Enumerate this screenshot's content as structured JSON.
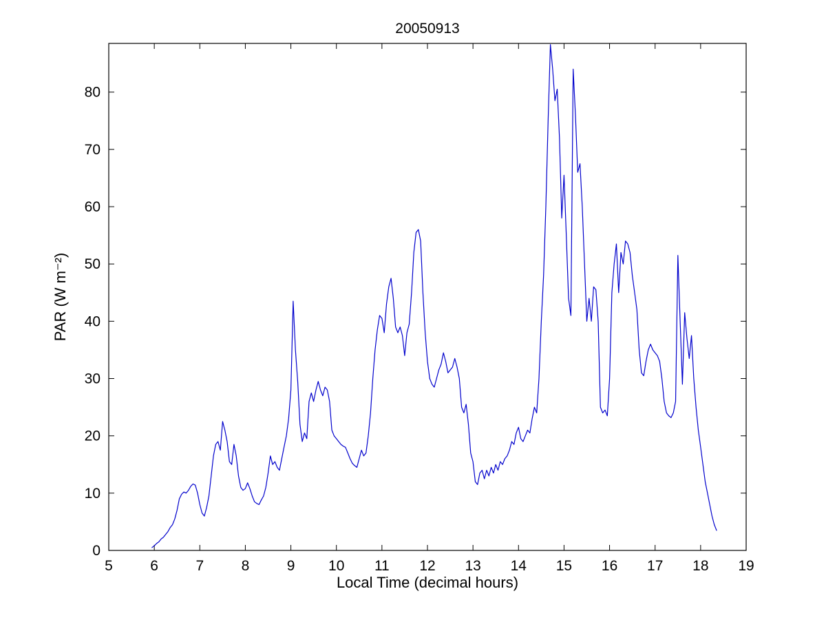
{
  "chart_data": {
    "type": "line",
    "title": "20050913",
    "xlabel": "Local Time (decimal hours)",
    "ylabel": "PAR (W m⁻²)",
    "xlim": [
      5,
      19
    ],
    "ylim": [
      0,
      88.5
    ],
    "xticks": [
      5,
      6,
      7,
      8,
      9,
      10,
      11,
      12,
      13,
      14,
      15,
      16,
      17,
      18,
      19
    ],
    "yticks": [
      0,
      10,
      20,
      30,
      40,
      50,
      60,
      70,
      80
    ],
    "grid": false,
    "legend": null,
    "line_color": "#0000cc",
    "axis_color": "#000000",
    "background": "#ffffff",
    "series_name": "PAR",
    "points": [
      [
        5.95,
        0.5
      ],
      [
        6.0,
        0.8
      ],
      [
        6.05,
        1.2
      ],
      [
        6.1,
        1.5
      ],
      [
        6.15,
        2.0
      ],
      [
        6.2,
        2.3
      ],
      [
        6.25,
        2.8
      ],
      [
        6.3,
        3.3
      ],
      [
        6.35,
        4.0
      ],
      [
        6.4,
        4.5
      ],
      [
        6.45,
        5.5
      ],
      [
        6.5,
        7.0
      ],
      [
        6.55,
        9.0
      ],
      [
        6.6,
        9.8
      ],
      [
        6.65,
        10.2
      ],
      [
        6.7,
        10.0
      ],
      [
        6.75,
        10.5
      ],
      [
        6.8,
        11.2
      ],
      [
        6.85,
        11.6
      ],
      [
        6.9,
        11.4
      ],
      [
        6.95,
        10.0
      ],
      [
        7.0,
        8.0
      ],
      [
        7.05,
        6.5
      ],
      [
        7.1,
        6.0
      ],
      [
        7.15,
        7.5
      ],
      [
        7.2,
        9.5
      ],
      [
        7.25,
        13.0
      ],
      [
        7.3,
        16.5
      ],
      [
        7.35,
        18.5
      ],
      [
        7.4,
        19.0
      ],
      [
        7.45,
        17.5
      ],
      [
        7.5,
        22.5
      ],
      [
        7.55,
        21.0
      ],
      [
        7.6,
        19.0
      ],
      [
        7.65,
        15.5
      ],
      [
        7.7,
        15.0
      ],
      [
        7.75,
        18.5
      ],
      [
        7.8,
        16.5
      ],
      [
        7.85,
        13.0
      ],
      [
        7.9,
        11.0
      ],
      [
        7.95,
        10.5
      ],
      [
        8.0,
        10.8
      ],
      [
        8.05,
        11.8
      ],
      [
        8.1,
        10.8
      ],
      [
        8.15,
        9.5
      ],
      [
        8.2,
        8.5
      ],
      [
        8.25,
        8.2
      ],
      [
        8.3,
        8.0
      ],
      [
        8.35,
        8.8
      ],
      [
        8.4,
        9.5
      ],
      [
        8.45,
        11.0
      ],
      [
        8.5,
        13.5
      ],
      [
        8.55,
        16.5
      ],
      [
        8.6,
        15.0
      ],
      [
        8.65,
        15.5
      ],
      [
        8.7,
        14.5
      ],
      [
        8.75,
        14.0
      ],
      [
        8.8,
        16.0
      ],
      [
        8.85,
        18.0
      ],
      [
        8.9,
        20.0
      ],
      [
        8.95,
        23.0
      ],
      [
        9.0,
        28.0
      ],
      [
        9.05,
        43.5
      ],
      [
        9.1,
        35.0
      ],
      [
        9.15,
        29.5
      ],
      [
        9.2,
        22.0
      ],
      [
        9.25,
        19.0
      ],
      [
        9.3,
        20.5
      ],
      [
        9.35,
        19.5
      ],
      [
        9.4,
        26.0
      ],
      [
        9.45,
        27.5
      ],
      [
        9.5,
        26.0
      ],
      [
        9.55,
        28.0
      ],
      [
        9.6,
        29.5
      ],
      [
        9.65,
        28.0
      ],
      [
        9.7,
        27.0
      ],
      [
        9.75,
        28.5
      ],
      [
        9.8,
        28.0
      ],
      [
        9.85,
        26.0
      ],
      [
        9.9,
        21.0
      ],
      [
        9.95,
        20.0
      ],
      [
        10.0,
        19.5
      ],
      [
        10.05,
        19.0
      ],
      [
        10.1,
        18.5
      ],
      [
        10.15,
        18.2
      ],
      [
        10.2,
        18.0
      ],
      [
        10.25,
        17.0
      ],
      [
        10.3,
        16.0
      ],
      [
        10.35,
        15.2
      ],
      [
        10.4,
        14.8
      ],
      [
        10.45,
        14.5
      ],
      [
        10.5,
        16.0
      ],
      [
        10.55,
        17.5
      ],
      [
        10.6,
        16.5
      ],
      [
        10.65,
        17.0
      ],
      [
        10.7,
        20.0
      ],
      [
        10.75,
        24.0
      ],
      [
        10.8,
        30.0
      ],
      [
        10.85,
        35.0
      ],
      [
        10.9,
        38.5
      ],
      [
        10.95,
        41.0
      ],
      [
        11.0,
        40.5
      ],
      [
        11.05,
        38.0
      ],
      [
        11.1,
        43.0
      ],
      [
        11.15,
        46.0
      ],
      [
        11.2,
        47.5
      ],
      [
        11.25,
        44.0
      ],
      [
        11.3,
        39.0
      ],
      [
        11.35,
        38.0
      ],
      [
        11.4,
        39.0
      ],
      [
        11.45,
        37.5
      ],
      [
        11.5,
        34.0
      ],
      [
        11.55,
        38.0
      ],
      [
        11.6,
        39.5
      ],
      [
        11.65,
        45.0
      ],
      [
        11.7,
        52.0
      ],
      [
        11.75,
        55.5
      ],
      [
        11.8,
        56.0
      ],
      [
        11.85,
        54.0
      ],
      [
        11.9,
        45.0
      ],
      [
        11.95,
        38.0
      ],
      [
        12.0,
        33.0
      ],
      [
        12.05,
        30.0
      ],
      [
        12.1,
        29.0
      ],
      [
        12.15,
        28.5
      ],
      [
        12.2,
        30.0
      ],
      [
        12.25,
        31.5
      ],
      [
        12.3,
        32.5
      ],
      [
        12.35,
        34.5
      ],
      [
        12.4,
        33.0
      ],
      [
        12.45,
        31.0
      ],
      [
        12.5,
        31.5
      ],
      [
        12.55,
        32.0
      ],
      [
        12.6,
        33.5
      ],
      [
        12.65,
        32.0
      ],
      [
        12.7,
        30.0
      ],
      [
        12.75,
        25.0
      ],
      [
        12.8,
        24.0
      ],
      [
        12.85,
        25.5
      ],
      [
        12.9,
        22.0
      ],
      [
        12.95,
        17.0
      ],
      [
        13.0,
        15.5
      ],
      [
        13.05,
        12.0
      ],
      [
        13.1,
        11.5
      ],
      [
        13.15,
        13.5
      ],
      [
        13.2,
        14.0
      ],
      [
        13.25,
        12.5
      ],
      [
        13.3,
        14.0
      ],
      [
        13.35,
        13.0
      ],
      [
        13.4,
        14.5
      ],
      [
        13.45,
        13.5
      ],
      [
        13.5,
        15.0
      ],
      [
        13.55,
        14.0
      ],
      [
        13.6,
        15.5
      ],
      [
        13.65,
        15.0
      ],
      [
        13.7,
        16.0
      ],
      [
        13.75,
        16.5
      ],
      [
        13.8,
        17.5
      ],
      [
        13.85,
        19.0
      ],
      [
        13.9,
        18.5
      ],
      [
        13.95,
        20.5
      ],
      [
        14.0,
        21.5
      ],
      [
        14.05,
        19.5
      ],
      [
        14.1,
        19.0
      ],
      [
        14.15,
        20.0
      ],
      [
        14.2,
        21.0
      ],
      [
        14.25,
        20.5
      ],
      [
        14.3,
        23.0
      ],
      [
        14.35,
        25.0
      ],
      [
        14.4,
        24.0
      ],
      [
        14.45,
        30.0
      ],
      [
        14.5,
        40.0
      ],
      [
        14.55,
        48.0
      ],
      [
        14.6,
        60.0
      ],
      [
        14.65,
        75.0
      ],
      [
        14.7,
        88.3
      ],
      [
        14.75,
        84.0
      ],
      [
        14.8,
        78.5
      ],
      [
        14.85,
        80.5
      ],
      [
        14.9,
        72.0
      ],
      [
        14.95,
        58.0
      ],
      [
        15.0,
        65.5
      ],
      [
        15.05,
        55.0
      ],
      [
        15.1,
        44.0
      ],
      [
        15.15,
        41.0
      ],
      [
        15.2,
        84.0
      ],
      [
        15.25,
        76.0
      ],
      [
        15.3,
        66.0
      ],
      [
        15.35,
        67.5
      ],
      [
        15.4,
        60.0
      ],
      [
        15.45,
        50.0
      ],
      [
        15.5,
        40.0
      ],
      [
        15.55,
        44.0
      ],
      [
        15.6,
        40.0
      ],
      [
        15.65,
        46.0
      ],
      [
        15.7,
        45.5
      ],
      [
        15.75,
        40.0
      ],
      [
        15.8,
        25.0
      ],
      [
        15.85,
        24.0
      ],
      [
        15.9,
        24.5
      ],
      [
        15.95,
        23.5
      ],
      [
        16.0,
        30.0
      ],
      [
        16.05,
        45.0
      ],
      [
        16.1,
        50.0
      ],
      [
        16.15,
        53.5
      ],
      [
        16.2,
        45.0
      ],
      [
        16.25,
        52.0
      ],
      [
        16.3,
        50.0
      ],
      [
        16.35,
        54.0
      ],
      [
        16.4,
        53.5
      ],
      [
        16.45,
        52.0
      ],
      [
        16.5,
        48.0
      ],
      [
        16.55,
        45.0
      ],
      [
        16.6,
        42.0
      ],
      [
        16.65,
        35.0
      ],
      [
        16.7,
        31.0
      ],
      [
        16.75,
        30.5
      ],
      [
        16.8,
        33.0
      ],
      [
        16.85,
        35.0
      ],
      [
        16.9,
        36.0
      ],
      [
        16.95,
        35.0
      ],
      [
        17.0,
        34.5
      ],
      [
        17.05,
        34.0
      ],
      [
        17.1,
        33.0
      ],
      [
        17.15,
        30.0
      ],
      [
        17.2,
        26.0
      ],
      [
        17.25,
        24.0
      ],
      [
        17.3,
        23.5
      ],
      [
        17.35,
        23.2
      ],
      [
        17.4,
        24.0
      ],
      [
        17.45,
        26.0
      ],
      [
        17.5,
        51.5
      ],
      [
        17.55,
        40.0
      ],
      [
        17.6,
        29.0
      ],
      [
        17.65,
        41.5
      ],
      [
        17.7,
        37.0
      ],
      [
        17.75,
        33.5
      ],
      [
        17.8,
        37.5
      ],
      [
        17.85,
        30.0
      ],
      [
        17.9,
        25.0
      ],
      [
        17.95,
        21.0
      ],
      [
        18.0,
        18.0
      ],
      [
        18.05,
        15.0
      ],
      [
        18.1,
        12.0
      ],
      [
        18.15,
        10.0
      ],
      [
        18.2,
        8.0
      ],
      [
        18.25,
        6.0
      ],
      [
        18.3,
        4.5
      ],
      [
        18.35,
        3.5
      ]
    ]
  }
}
